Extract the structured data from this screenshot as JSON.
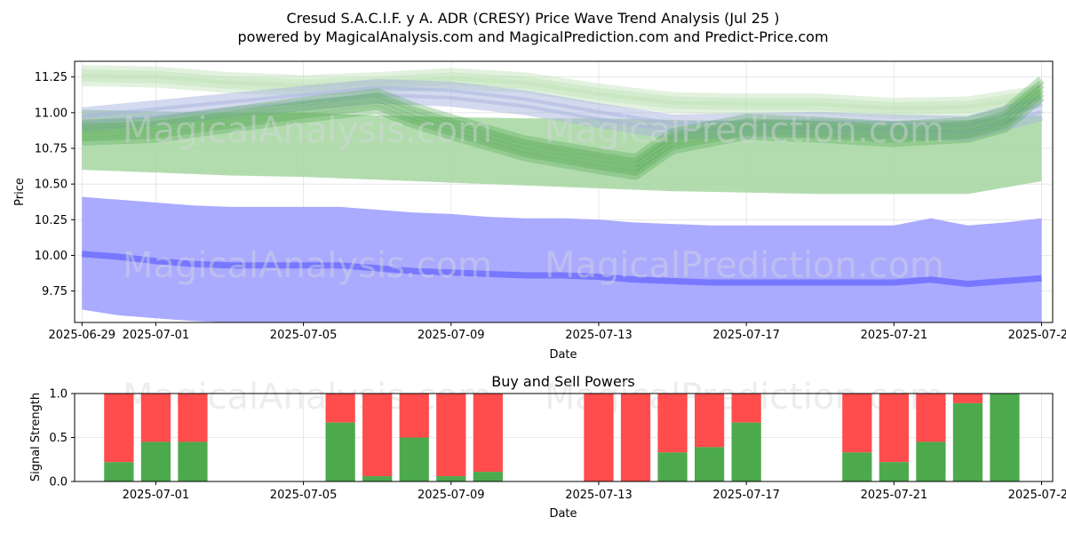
{
  "chart_data": [
    {
      "type": "area",
      "title": "Cresud S.A.C.I.F. y A. ADR (CRESY) Price Wave Trend Analysis (Jul 25 )",
      "subtitle": "powered by MagicalAnalysis.com and MagicalPrediction.com and Predict-Price.com",
      "xlabel": "Date",
      "ylabel": "Price",
      "xlim": [
        -0.2,
        26.3
      ],
      "ylim": [
        9.53,
        11.36
      ],
      "x_tick_labels": [
        "2025-06-29",
        "2025-07-01",
        "2025-07-05",
        "2025-07-09",
        "2025-07-13",
        "2025-07-17",
        "2025-07-21",
        "2025-07-25"
      ],
      "x_tick_days": [
        0,
        2,
        6,
        10,
        14,
        18,
        22,
        26
      ],
      "y_ticks": [
        9.75,
        10.0,
        10.25,
        10.5,
        10.75,
        11.0,
        11.25
      ],
      "y_tick_labels": [
        "9.75",
        "10.00",
        "10.25",
        "10.50",
        "10.75",
        "11.00",
        "11.25"
      ],
      "grid": true,
      "watermarks": [
        "MagicalAnalysis.com",
        "MagicalPrediction.com"
      ],
      "series": [
        {
          "name": "forecast-blue-line",
          "color": "#7777ff",
          "x": [
            0,
            1,
            2,
            3,
            4,
            5,
            6,
            7,
            8,
            9,
            10,
            11,
            12,
            13,
            14,
            15,
            16,
            17,
            18,
            19,
            20,
            21,
            22,
            23,
            24,
            25,
            26
          ],
          "values": [
            10.01,
            9.99,
            9.96,
            9.94,
            9.93,
            9.93,
            9.93,
            9.93,
            9.91,
            9.89,
            9.88,
            9.87,
            9.86,
            9.86,
            9.85,
            9.83,
            9.82,
            9.81,
            9.81,
            9.81,
            9.81,
            9.81,
            9.81,
            9.83,
            9.8,
            9.82,
            9.84
          ]
        },
        {
          "name": "forecast-blue-band",
          "color": "#aaaaff",
          "x": [
            0,
            1,
            2,
            3,
            4,
            5,
            6,
            7,
            8,
            9,
            10,
            11,
            12,
            13,
            14,
            15,
            16,
            17,
            18,
            19,
            20,
            21,
            22,
            23,
            24,
            25,
            26
          ],
          "upper": [
            10.41,
            10.39,
            10.37,
            10.35,
            10.34,
            10.34,
            10.34,
            10.34,
            10.32,
            10.3,
            10.29,
            10.27,
            10.26,
            10.26,
            10.25,
            10.23,
            10.22,
            10.21,
            10.21,
            10.21,
            10.21,
            10.21,
            10.21,
            10.26,
            10.21,
            10.23,
            10.26
          ],
          "lower": [
            9.62,
            9.58,
            9.56,
            9.54,
            9.53,
            9.53,
            9.53,
            9.53,
            9.53,
            9.53,
            9.53,
            9.53,
            9.53,
            9.53,
            9.53,
            9.53,
            9.53,
            9.53,
            9.53,
            9.53,
            9.53,
            9.53,
            9.53,
            9.53,
            9.53,
            9.53,
            9.53
          ]
        },
        {
          "name": "wide-green-band",
          "color": "#a5d6a0",
          "x": [
            0,
            2,
            4,
            6,
            8,
            10,
            12,
            14,
            16,
            18,
            20,
            22,
            24,
            26
          ],
          "upper": [
            11.02,
            11.01,
            11.0,
            11.0,
            10.98,
            10.97,
            10.96,
            10.96,
            10.95,
            10.94,
            10.94,
            10.94,
            10.95,
            10.98
          ],
          "lower": [
            10.6,
            10.58,
            10.56,
            10.55,
            10.53,
            10.51,
            10.49,
            10.47,
            10.45,
            10.44,
            10.43,
            10.43,
            10.43,
            10.52
          ]
        },
        {
          "name": "green-trend-line",
          "color": "#55aa55",
          "x": [
            0,
            2,
            4,
            6,
            8,
            9,
            10,
            12,
            14,
            15,
            16,
            18,
            20,
            22,
            24,
            25,
            26
          ],
          "values": [
            10.86,
            10.88,
            10.95,
            11.02,
            11.08,
            10.98,
            10.9,
            10.75,
            10.66,
            10.62,
            10.8,
            10.9,
            10.88,
            10.85,
            10.88,
            10.95,
            11.17
          ]
        },
        {
          "name": "blue-gray-trend-line",
          "color": "#a7b4dd",
          "x": [
            0,
            2,
            4,
            6,
            8,
            10,
            12,
            14,
            16,
            18,
            20,
            22,
            24,
            26
          ],
          "values": [
            11.0,
            11.05,
            11.1,
            11.15,
            11.2,
            11.18,
            11.12,
            11.03,
            10.95,
            10.96,
            10.97,
            10.95,
            10.94,
            11.08
          ]
        },
        {
          "name": "light-green-top-line",
          "color": "#bfe3b9",
          "x": [
            0,
            2,
            4,
            6,
            8,
            10,
            12,
            14,
            16,
            18,
            20,
            22,
            24,
            26
          ],
          "values": [
            11.29,
            11.28,
            11.24,
            11.22,
            11.24,
            11.27,
            11.24,
            11.16,
            11.1,
            11.09,
            11.09,
            11.06,
            11.07,
            11.15
          ]
        }
      ]
    },
    {
      "type": "bar",
      "title": "Buy and Sell Powers",
      "xlabel": "Date",
      "ylabel": "Signal Strength",
      "ylim": [
        0,
        1
      ],
      "y_ticks": [
        0,
        0.5,
        1.0
      ],
      "y_tick_labels": [
        "0.0",
        "0.5",
        "1.0"
      ],
      "x_tick_labels": [
        "2025-07-01",
        "2025-07-05",
        "2025-07-09",
        "2025-07-13",
        "2025-07-17",
        "2025-07-21",
        "2025-07-25"
      ],
      "x_tick_days": [
        2,
        6,
        10,
        14,
        18,
        22,
        26
      ],
      "xlim": [
        -0.2,
        26.3
      ],
      "colors": {
        "buy": "#4caa4c",
        "sell": "#ff4c4c"
      },
      "days": [
        1,
        2,
        3,
        7,
        8,
        9,
        10,
        11,
        14,
        15,
        16,
        17,
        18,
        21,
        22,
        23,
        24,
        25
      ],
      "buy": [
        0.22,
        0.45,
        0.45,
        0.67,
        0.06,
        0.5,
        0.06,
        0.11,
        0.0,
        0.0,
        0.33,
        0.39,
        0.67,
        0.33,
        0.22,
        0.45,
        0.89,
        1.0
      ]
    }
  ]
}
